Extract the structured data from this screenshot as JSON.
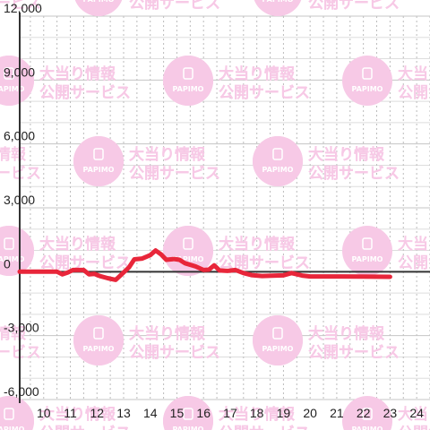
{
  "watermark": {
    "logo_text": "PAPIMO",
    "line1": "大当り情報",
    "line2": "公開サービス",
    "color": "#f7c9e6"
  },
  "chart_data": {
    "type": "line",
    "title": "",
    "xlabel": "",
    "ylabel": "",
    "xlim": [
      9.1,
      24.5
    ],
    "ylim": [
      -6000,
      12000
    ],
    "x_ticks": [
      10,
      11,
      12,
      13,
      14,
      15,
      16,
      17,
      18,
      19,
      20,
      21,
      22,
      23,
      24
    ],
    "x_tick_labels": [
      "10",
      "11",
      "12",
      "13",
      "14",
      "15",
      "16",
      "17",
      "18",
      "19",
      "20",
      "21",
      "22",
      "23",
      "24"
    ],
    "y_ticks": [
      -6000,
      -3000,
      0,
      3000,
      6000,
      9000,
      12000
    ],
    "y_tick_labels": [
      "-6,000",
      "-3,000",
      "0",
      "3,000",
      "6,000",
      "9,000",
      "12,000"
    ],
    "y_minor_step": 1000,
    "x_minor_step": 0.5,
    "grid": true,
    "series": [
      {
        "color": "#e8263a",
        "points": [
          [
            9.1,
            0
          ],
          [
            10.5,
            0
          ],
          [
            10.7,
            -120
          ],
          [
            10.9,
            -40
          ],
          [
            11.1,
            80
          ],
          [
            11.5,
            80
          ],
          [
            11.7,
            -120
          ],
          [
            11.9,
            -100
          ],
          [
            12.1,
            -200
          ],
          [
            12.4,
            -300
          ],
          [
            12.7,
            -380
          ],
          [
            12.9,
            -150
          ],
          [
            13.2,
            200
          ],
          [
            13.4,
            580
          ],
          [
            13.7,
            620
          ],
          [
            14.0,
            780
          ],
          [
            14.2,
            1000
          ],
          [
            14.4,
            820
          ],
          [
            14.6,
            560
          ],
          [
            14.9,
            600
          ],
          [
            15.1,
            560
          ],
          [
            15.3,
            400
          ],
          [
            15.7,
            250
          ],
          [
            16.0,
            80
          ],
          [
            16.2,
            100
          ],
          [
            16.4,
            300
          ],
          [
            16.6,
            60
          ],
          [
            16.9,
            40
          ],
          [
            17.2,
            80
          ],
          [
            17.5,
            -60
          ],
          [
            17.8,
            -160
          ],
          [
            18.2,
            -200
          ],
          [
            18.7,
            -180
          ],
          [
            19.0,
            -170
          ],
          [
            19.3,
            -60
          ],
          [
            19.7,
            -180
          ],
          [
            20.0,
            -220
          ],
          [
            21.0,
            -220
          ],
          [
            22.0,
            -230
          ],
          [
            23.0,
            -240
          ]
        ]
      }
    ]
  }
}
